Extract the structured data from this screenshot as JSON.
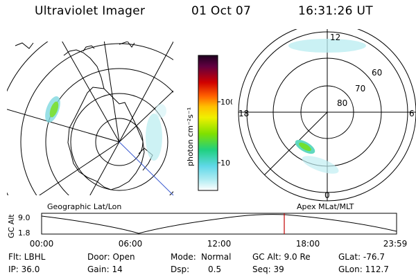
{
  "header": {
    "title": "Ultraviolet Imager",
    "date": "01 Oct 07",
    "time": "16:31:26 UT"
  },
  "colorbar": {
    "unit_label": "photon cm⁻²s⁻¹",
    "ticks": [
      "100",
      "10"
    ]
  },
  "panels": {
    "left_caption": "Geographic Lat/Lon",
    "right_caption": "Apex MLat/MLT"
  },
  "right_map": {
    "lat_labels": [
      "60",
      "70",
      "80"
    ],
    "mlt_labels": {
      "top": "12",
      "left": "18",
      "right": "6",
      "bottom": "0"
    }
  },
  "timeline": {
    "ylabel": "GC Alt",
    "yticks": [
      "9.0",
      "1.8"
    ],
    "xticks": [
      "00:00",
      "06:00",
      "12:00",
      "18:00",
      "23:59"
    ],
    "marker_color": "#c00000"
  },
  "info": {
    "col1": [
      "Flt: LBHL",
      "IP: 36.0"
    ],
    "col2": [
      "Door: Open",
      "Gain: 14"
    ],
    "col3_labels": [
      "Mode:",
      "Dsp:"
    ],
    "col3_values": [
      "Normal",
      "0.5"
    ],
    "col4": [
      "GC Alt: 9.0 Re",
      "Seq: 39"
    ],
    "col5": [
      "GLat: -76.7",
      "GLon: 112.7"
    ]
  }
}
